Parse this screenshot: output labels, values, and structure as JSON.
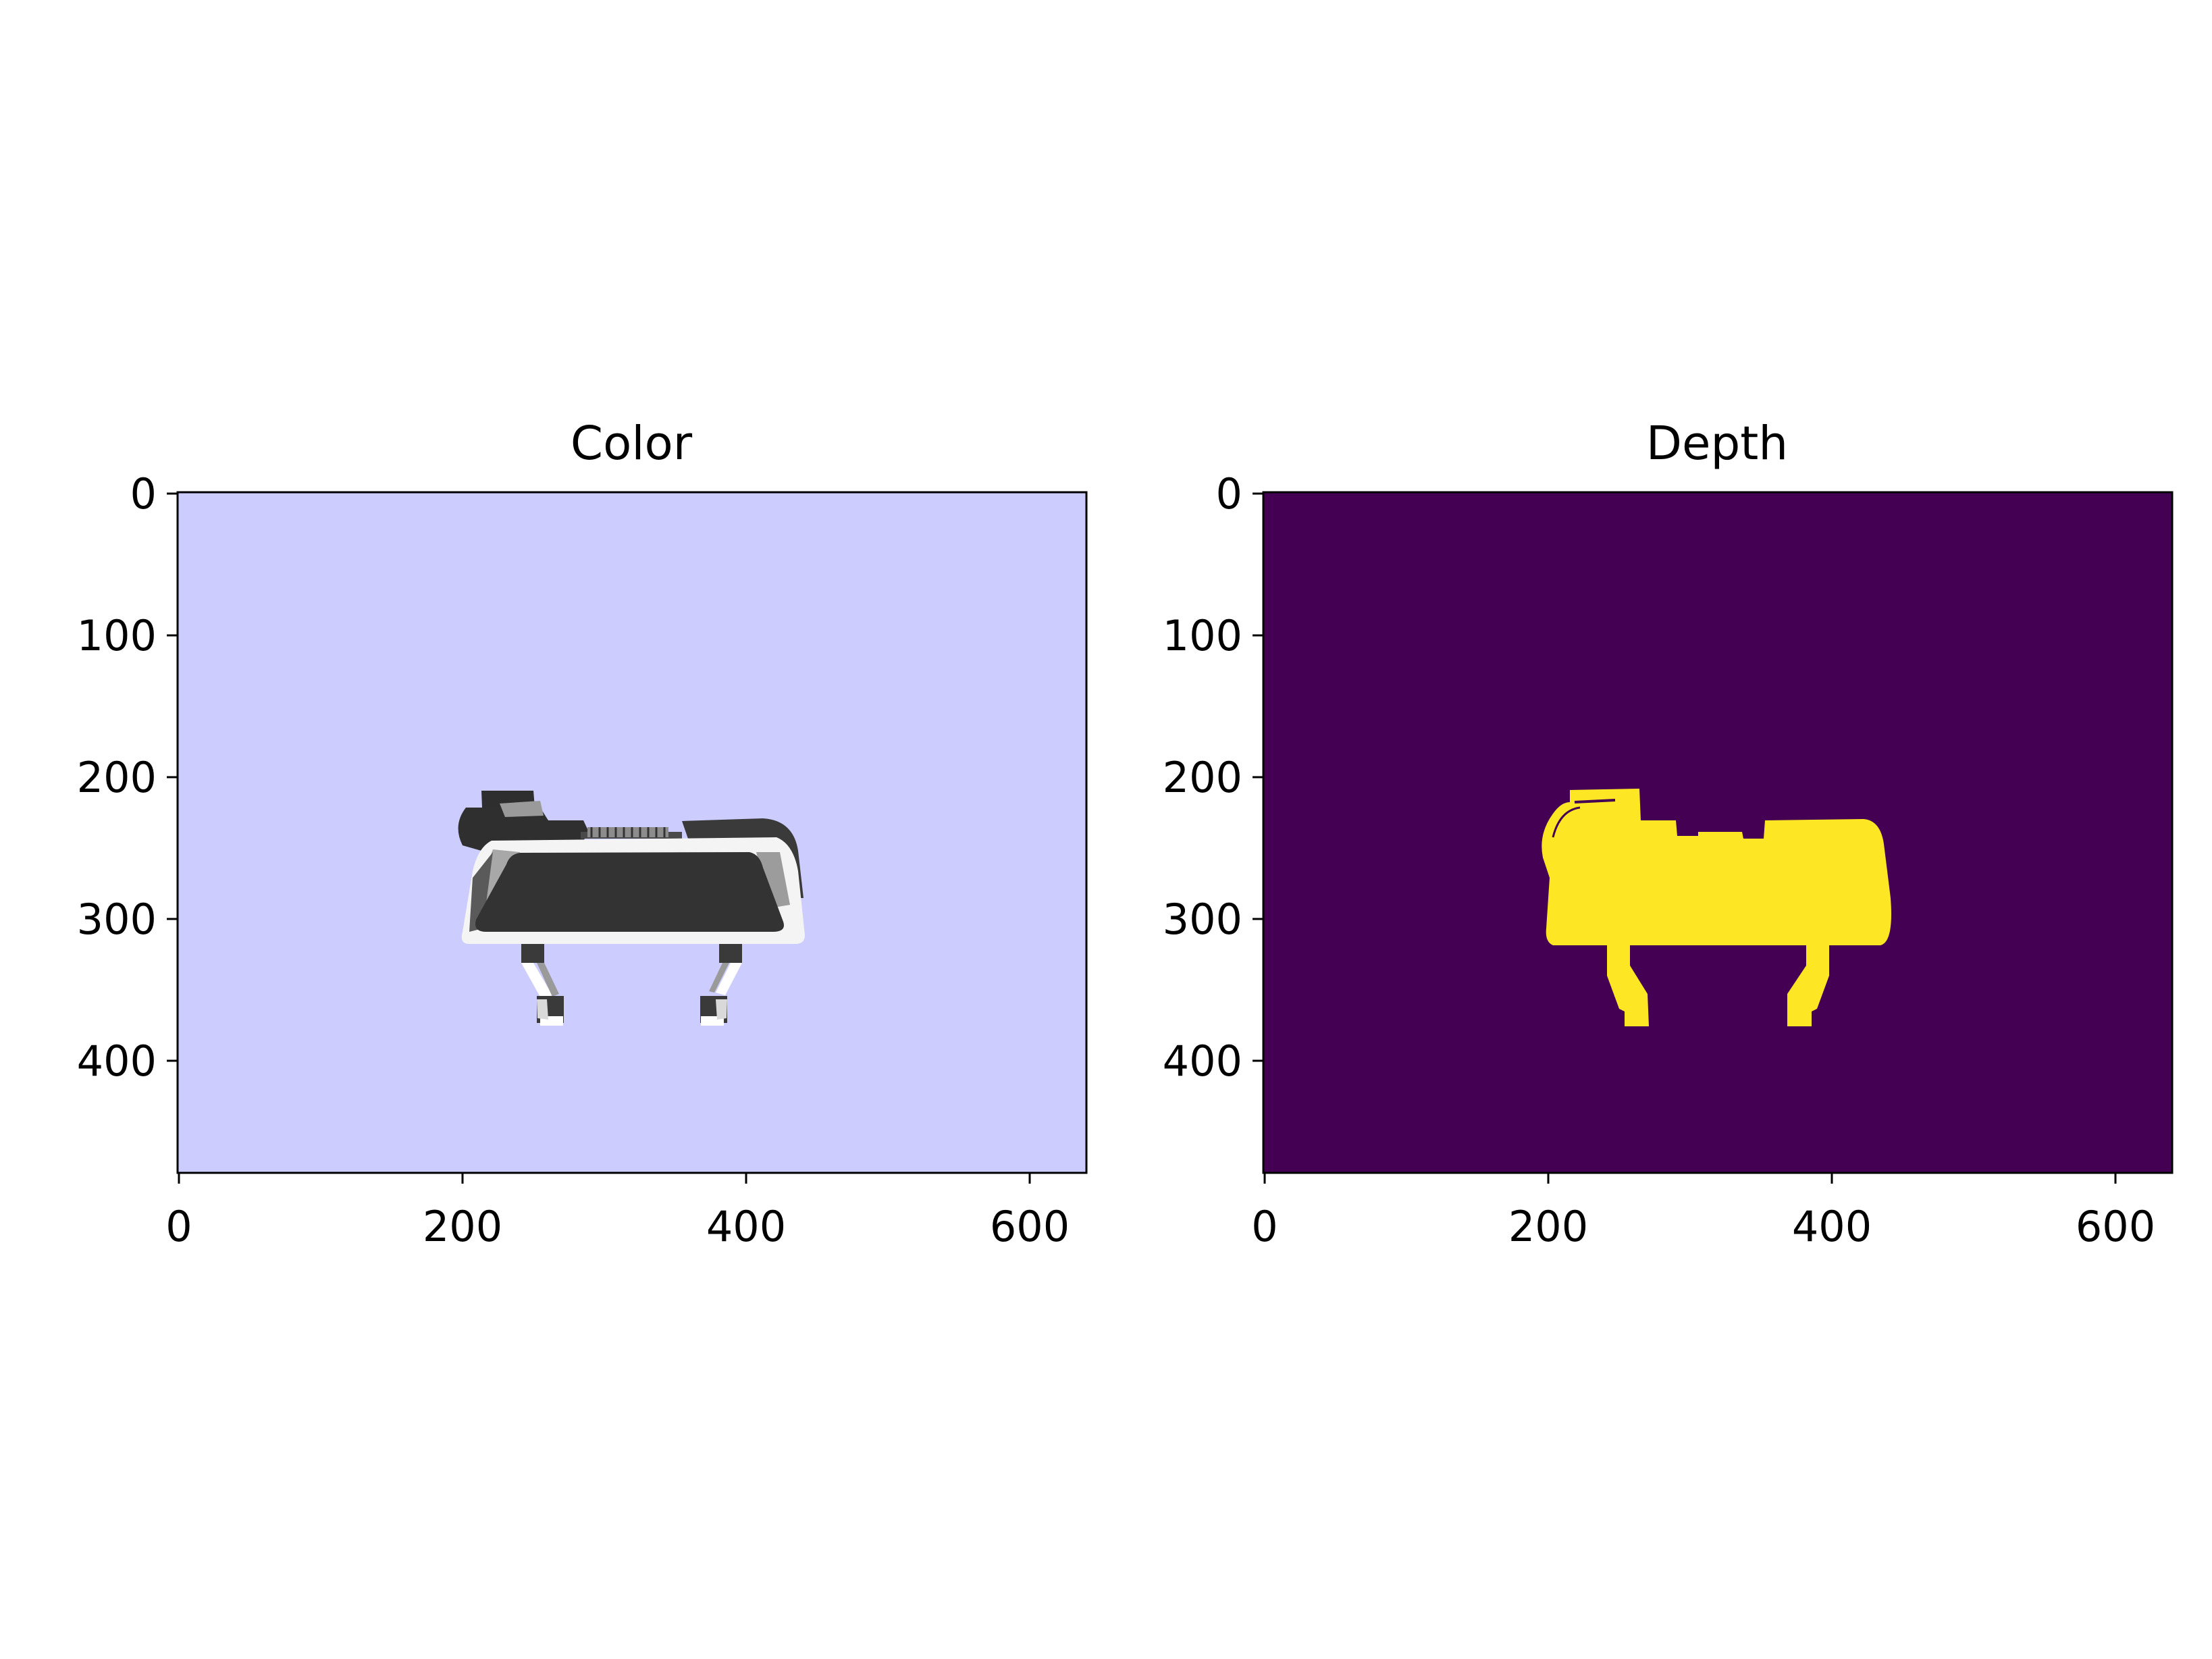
{
  "panels": [
    {
      "title": "Color",
      "background": "#ccccff",
      "x_ticks": [
        "0",
        "200",
        "400",
        "600"
      ],
      "y_ticks": [
        "0",
        "100",
        "200",
        "300",
        "400"
      ]
    },
    {
      "title": "Depth",
      "background": "#440154",
      "foreground": "#fde725",
      "x_ticks": [
        "0",
        "200",
        "400",
        "600"
      ],
      "y_ticks": [
        "0",
        "100",
        "200",
        "300",
        "400"
      ]
    }
  ]
}
